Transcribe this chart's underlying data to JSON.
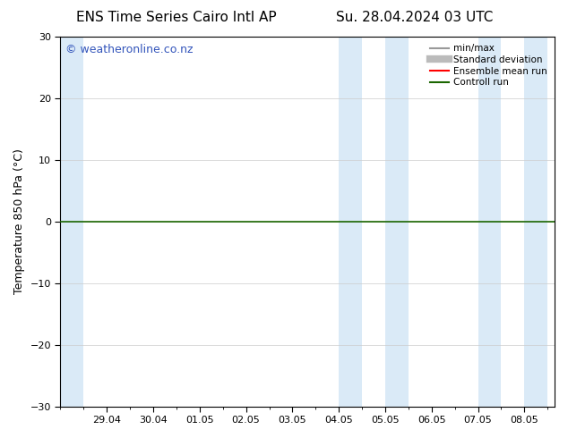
{
  "title_left": "ENS Time Series Cairo Intl AP",
  "title_right": "Su. 28.04.2024 03 UTC",
  "ylabel": "Temperature 850 hPa (°C)",
  "ylim": [
    -30,
    30
  ],
  "yticks": [
    -30,
    -20,
    -10,
    0,
    10,
    20,
    30
  ],
  "xtick_labels": [
    "29.04",
    "30.04",
    "01.05",
    "02.05",
    "03.05",
    "04.05",
    "05.05",
    "06.05",
    "07.05",
    "08.05"
  ],
  "watermark": "© weatheronline.co.nz",
  "bg_color": "#ffffff",
  "plot_bg_color": "#ffffff",
  "shaded_band_color": "#daeaf7",
  "zero_line_color": "#1a6600",
  "legend_items": [
    {
      "label": "min/max",
      "color": "#999999"
    },
    {
      "label": "Standard deviation",
      "color": "#bbbbbb"
    },
    {
      "label": "Ensemble mean run",
      "color": "#ff0000"
    },
    {
      "label": "Controll run",
      "color": "#1a6600"
    }
  ],
  "title_fontsize": 11,
  "axis_label_fontsize": 9,
  "tick_fontsize": 8,
  "watermark_fontsize": 9,
  "watermark_color": "#3355bb",
  "shaded_bands": [
    {
      "start_day": 0.0,
      "end_day": 0.5
    },
    {
      "start_day": 6.0,
      "end_day": 6.5
    },
    {
      "start_day": 7.0,
      "end_day": 7.5
    },
    {
      "start_day": 9.0,
      "end_day": 9.5
    },
    {
      "start_day": 10.0,
      "end_day": 10.5
    }
  ]
}
